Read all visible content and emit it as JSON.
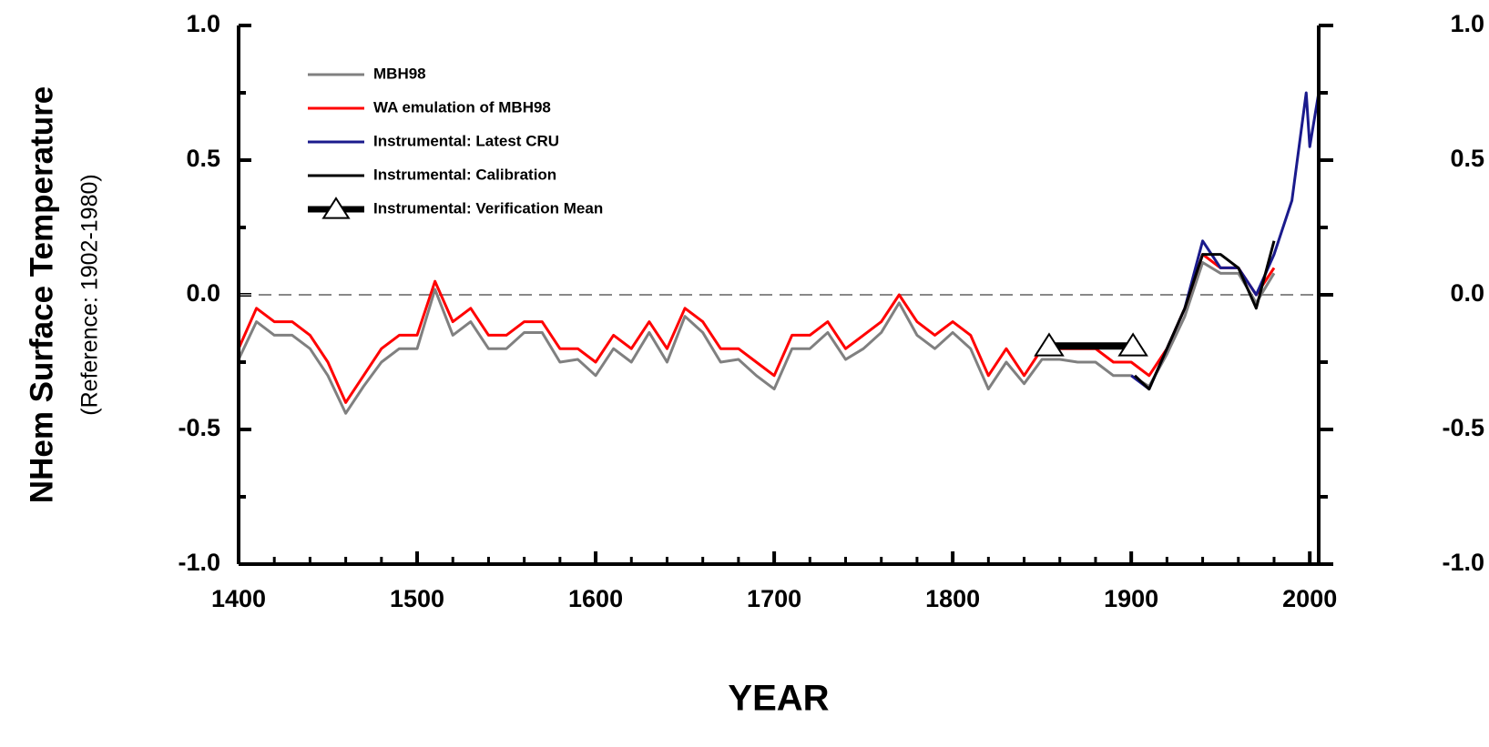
{
  "chart_data": {
    "type": "line",
    "x_label": "YEAR",
    "y_label": "NHem Surface Temperature",
    "y_sublabel": "(Reference: 1902-1980)",
    "xlim": [
      1400,
      2005
    ],
    "xticks": [
      1400,
      1500,
      1600,
      1700,
      1800,
      1900,
      2000
    ],
    "x_minor_ticks": [
      1420,
      1440,
      1460,
      1480,
      1520,
      1540,
      1560,
      1580,
      1620,
      1640,
      1660,
      1680,
      1720,
      1740,
      1760,
      1780,
      1820,
      1840,
      1860,
      1880,
      1920,
      1940,
      1960,
      1980
    ],
    "ylim": [
      -1.0,
      1.0
    ],
    "yticks": [
      {
        "value": -1.0,
        "label": "-1.0"
      },
      {
        "value": -0.5,
        "label": "-0.5"
      },
      {
        "value": 0.0,
        "label": "0.0"
      },
      {
        "value": 0.5,
        "label": "0.5"
      },
      {
        "value": 1.0,
        "label": "1.0"
      }
    ],
    "y_minor_ticks": [
      -0.75,
      -0.25,
      0.25,
      0.75
    ],
    "reference_line": 0.0,
    "series": [
      {
        "name": "MBH98",
        "color": "#808080",
        "x": [
          1400,
          1410,
          1420,
          1430,
          1440,
          1450,
          1460,
          1470,
          1480,
          1490,
          1500,
          1510,
          1520,
          1530,
          1540,
          1550,
          1560,
          1570,
          1580,
          1590,
          1600,
          1610,
          1620,
          1630,
          1640,
          1650,
          1660,
          1670,
          1680,
          1690,
          1700,
          1710,
          1720,
          1730,
          1740,
          1750,
          1760,
          1770,
          1780,
          1790,
          1800,
          1810,
          1820,
          1830,
          1840,
          1850,
          1860,
          1870,
          1880,
          1890,
          1900,
          1910,
          1920,
          1930,
          1940,
          1950,
          1960,
          1970,
          1980
        ],
        "values": [
          -0.24,
          -0.1,
          -0.15,
          -0.15,
          -0.2,
          -0.3,
          -0.44,
          -0.34,
          -0.25,
          -0.2,
          -0.2,
          0.02,
          -0.15,
          -0.1,
          -0.2,
          -0.2,
          -0.14,
          -0.14,
          -0.25,
          -0.24,
          -0.3,
          -0.2,
          -0.25,
          -0.14,
          -0.25,
          -0.08,
          -0.14,
          -0.25,
          -0.24,
          -0.3,
          -0.35,
          -0.2,
          -0.2,
          -0.14,
          -0.24,
          -0.2,
          -0.14,
          -0.03,
          -0.15,
          -0.2,
          -0.14,
          -0.2,
          -0.35,
          -0.25,
          -0.33,
          -0.24,
          -0.24,
          -0.25,
          -0.25,
          -0.3,
          -0.3,
          -0.34,
          -0.22,
          -0.08,
          0.12,
          0.08,
          0.08,
          -0.03,
          0.08
        ]
      },
      {
        "name": "WA emulation of MBH98",
        "color": "#ff0000",
        "x": [
          1400,
          1410,
          1420,
          1430,
          1440,
          1450,
          1460,
          1470,
          1480,
          1490,
          1500,
          1510,
          1520,
          1530,
          1540,
          1550,
          1560,
          1570,
          1580,
          1590,
          1600,
          1610,
          1620,
          1630,
          1640,
          1650,
          1660,
          1670,
          1680,
          1690,
          1700,
          1710,
          1720,
          1730,
          1740,
          1750,
          1760,
          1770,
          1780,
          1790,
          1800,
          1810,
          1820,
          1830,
          1840,
          1850,
          1860,
          1870,
          1880,
          1890,
          1900,
          1910,
          1920,
          1930,
          1940,
          1950,
          1960,
          1970,
          1980
        ],
        "values": [
          -0.2,
          -0.05,
          -0.1,
          -0.1,
          -0.15,
          -0.25,
          -0.4,
          -0.3,
          -0.2,
          -0.15,
          -0.15,
          0.05,
          -0.1,
          -0.05,
          -0.15,
          -0.15,
          -0.1,
          -0.1,
          -0.2,
          -0.2,
          -0.25,
          -0.15,
          -0.2,
          -0.1,
          -0.2,
          -0.05,
          -0.1,
          -0.2,
          -0.2,
          -0.25,
          -0.3,
          -0.15,
          -0.15,
          -0.1,
          -0.2,
          -0.15,
          -0.1,
          0.0,
          -0.1,
          -0.15,
          -0.1,
          -0.15,
          -0.3,
          -0.2,
          -0.3,
          -0.2,
          -0.2,
          -0.2,
          -0.2,
          -0.25,
          -0.25,
          -0.3,
          -0.2,
          -0.05,
          0.15,
          0.1,
          0.1,
          0.0,
          0.1
        ]
      },
      {
        "name": "Instrumental: Latest CRU",
        "color": "#1a1a8c",
        "x": [
          1900,
          1910,
          1920,
          1930,
          1940,
          1950,
          1960,
          1970,
          1980,
          1990,
          1998,
          2000,
          2005
        ],
        "values": [
          -0.3,
          -0.35,
          -0.2,
          -0.05,
          0.2,
          0.1,
          0.1,
          0.0,
          0.15,
          0.35,
          0.75,
          0.55,
          0.75
        ]
      },
      {
        "name": "Instrumental: Calibration",
        "color": "#000000",
        "x": [
          1902,
          1910,
          1920,
          1930,
          1940,
          1950,
          1960,
          1970,
          1980
        ],
        "values": [
          -0.3,
          -0.35,
          -0.2,
          -0.05,
          0.15,
          0.15,
          0.1,
          -0.05,
          0.2
        ]
      },
      {
        "name": "Instrumental: Verification Mean",
        "color": "#000000",
        "markers": true,
        "x": [
          1854,
          1901
        ],
        "values": [
          -0.19,
          -0.19
        ]
      }
    ]
  }
}
